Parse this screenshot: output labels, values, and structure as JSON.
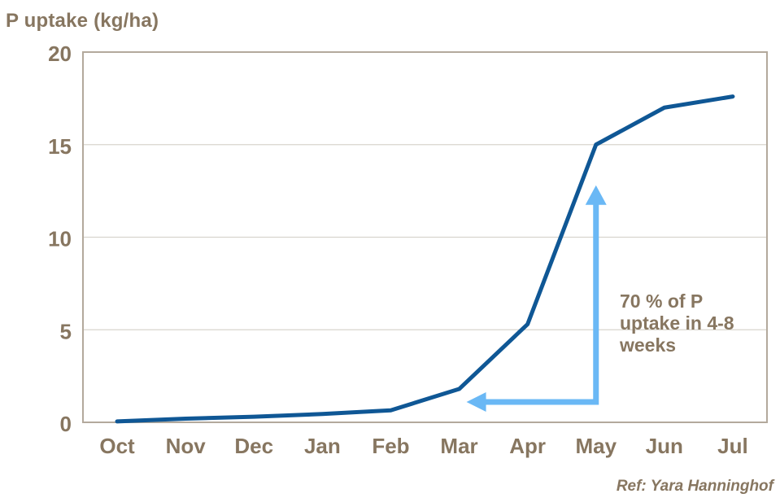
{
  "chart_data": {
    "type": "line",
    "title": "P uptake (kg/ha)",
    "categories": [
      "Oct",
      "Nov",
      "Dec",
      "Jan",
      "Feb",
      "Mar",
      "Apr",
      "May",
      "Jun",
      "Jul"
    ],
    "series": [
      {
        "name": "P uptake",
        "values": [
          0.05,
          0.2,
          0.3,
          0.45,
          0.65,
          1.8,
          5.3,
          15.0,
          17.0,
          17.6
        ]
      }
    ],
    "xlabel": "",
    "ylabel": "P uptake (kg/ha)",
    "ylim": [
      0,
      20
    ],
    "yticks": [
      0,
      5,
      10,
      15,
      20
    ],
    "grid": "horizontal-only",
    "legend": "none",
    "annotation": {
      "text": "70 % of P\nuptake in 4-8\nweeks",
      "arrow": {
        "vertical_at_category": "May",
        "up_tip_value": 12.8,
        "elbow_value": 1.1,
        "left_tip_category": "Mar"
      }
    },
    "source": "Ref: Yara Hanninghof",
    "colors": {
      "series_line": "#0f5795",
      "arrow": "#6ab8f5",
      "text": "#877660",
      "plot_border": "#b3a99c",
      "gridline": "#d8d5cd",
      "background": "#ffffff"
    }
  }
}
